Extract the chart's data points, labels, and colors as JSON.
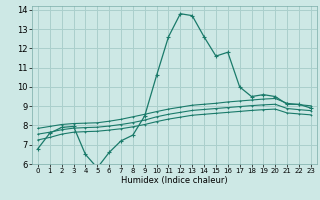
{
  "xlabel": "Humidex (Indice chaleur)",
  "background_color": "#cde8e5",
  "grid_color": "#aacfcc",
  "line_color": "#1a7a6a",
  "xlim": [
    -0.5,
    23.5
  ],
  "ylim": [
    6,
    14.2
  ],
  "xticks": [
    0,
    1,
    2,
    3,
    4,
    5,
    6,
    7,
    8,
    9,
    10,
    11,
    12,
    13,
    14,
    15,
    16,
    17,
    18,
    19,
    20,
    21,
    22,
    23
  ],
  "yticks": [
    6,
    7,
    8,
    9,
    10,
    11,
    12,
    13,
    14
  ],
  "series1_x": [
    0,
    1,
    2,
    3,
    4,
    5,
    6,
    7,
    8,
    9,
    10,
    11,
    12,
    13,
    14,
    15,
    16,
    17,
    18,
    19,
    20,
    21,
    22,
    23
  ],
  "series1_y": [
    6.8,
    7.6,
    7.9,
    7.95,
    6.5,
    5.8,
    6.6,
    7.2,
    7.5,
    8.5,
    10.6,
    12.6,
    13.8,
    13.7,
    12.6,
    11.6,
    11.8,
    10.0,
    9.5,
    9.6,
    9.5,
    9.1,
    9.1,
    8.9
  ],
  "series2_x": [
    0,
    1,
    2,
    3,
    4,
    5,
    6,
    7,
    8,
    9,
    10,
    11,
    12,
    13,
    14,
    15,
    16,
    17,
    18,
    19,
    20,
    21,
    22,
    23
  ],
  "series2_y": [
    7.85,
    7.95,
    8.05,
    8.1,
    8.12,
    8.14,
    8.22,
    8.32,
    8.45,
    8.58,
    8.72,
    8.85,
    8.95,
    9.05,
    9.1,
    9.15,
    9.22,
    9.27,
    9.32,
    9.37,
    9.4,
    9.15,
    9.08,
    9.02
  ],
  "series3_x": [
    0,
    1,
    2,
    3,
    4,
    5,
    6,
    7,
    8,
    9,
    10,
    11,
    12,
    13,
    14,
    15,
    16,
    17,
    18,
    19,
    20,
    21,
    22,
    23
  ],
  "series3_y": [
    7.55,
    7.65,
    7.78,
    7.86,
    7.89,
    7.91,
    7.97,
    8.05,
    8.15,
    8.28,
    8.45,
    8.58,
    8.68,
    8.78,
    8.83,
    8.88,
    8.93,
    8.98,
    9.03,
    9.07,
    9.1,
    8.88,
    8.82,
    8.77
  ],
  "series4_x": [
    0,
    1,
    2,
    3,
    4,
    5,
    6,
    7,
    8,
    9,
    10,
    11,
    12,
    13,
    14,
    15,
    16,
    17,
    18,
    19,
    20,
    21,
    22,
    23
  ],
  "series4_y": [
    7.25,
    7.38,
    7.55,
    7.65,
    7.68,
    7.7,
    7.76,
    7.83,
    7.93,
    8.05,
    8.2,
    8.33,
    8.43,
    8.53,
    8.58,
    8.63,
    8.68,
    8.73,
    8.78,
    8.82,
    8.85,
    8.65,
    8.6,
    8.55
  ],
  "xlabel_fontsize": 6,
  "tick_fontsize_x": 5,
  "tick_fontsize_y": 6
}
